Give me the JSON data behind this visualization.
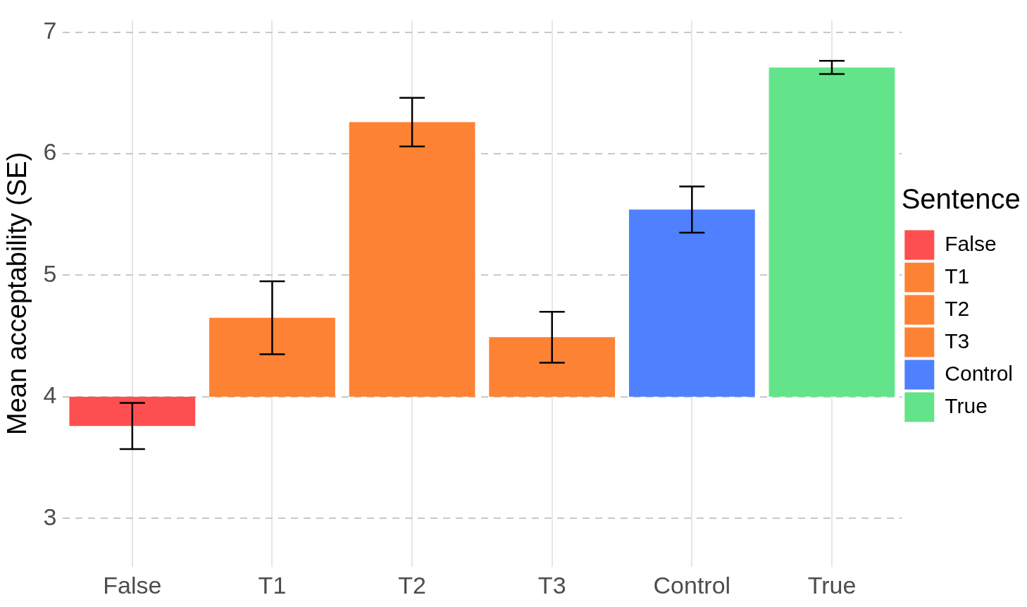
{
  "chart_data": {
    "type": "bar",
    "ylabel": "Mean acceptability (SE)",
    "legend_title": "Sentence",
    "categories": [
      "False",
      "T1",
      "T2",
      "T3",
      "Control",
      "True"
    ],
    "series": [
      {
        "name": "False",
        "color": "#fe4f50",
        "base": [
          4,
          null,
          null,
          null,
          null,
          null
        ],
        "values": [
          -0.24,
          null,
          null,
          null,
          null,
          null
        ],
        "errors": [
          0.19,
          null,
          null,
          null,
          null,
          null
        ]
      },
      {
        "name": "T1",
        "color": "#fe8233",
        "base": [
          null,
          4,
          null,
          null,
          null,
          null
        ],
        "values": [
          null,
          0.65,
          null,
          null,
          null,
          null
        ],
        "errors": [
          null,
          0.3,
          null,
          null,
          null,
          null
        ]
      },
      {
        "name": "T2",
        "color": "#fe8233",
        "base": [
          null,
          null,
          4,
          null,
          null,
          null
        ],
        "values": [
          null,
          null,
          2.26,
          null,
          null,
          null
        ],
        "errors": [
          null,
          null,
          0.2,
          null,
          null,
          null
        ]
      },
      {
        "name": "T3",
        "color": "#fe8233",
        "base": [
          null,
          null,
          null,
          4,
          null,
          null
        ],
        "values": [
          null,
          null,
          null,
          0.49,
          null,
          null
        ],
        "errors": [
          null,
          null,
          null,
          0.21,
          null,
          null
        ]
      },
      {
        "name": "Control",
        "color": "#4f80fe",
        "base": [
          null,
          null,
          null,
          null,
          4,
          null
        ],
        "values": [
          null,
          null,
          null,
          null,
          1.54,
          null
        ],
        "errors": [
          null,
          null,
          null,
          null,
          0.19,
          null
        ]
      },
      {
        "name": "True",
        "color": "#64e48a",
        "base": [
          null,
          null,
          null,
          null,
          null,
          4
        ],
        "values": [
          null,
          null,
          null,
          null,
          null,
          2.71
        ],
        "errors": [
          null,
          null,
          null,
          null,
          null,
          0.055
        ]
      }
    ],
    "ylim": [
      2.6,
      7.1
    ],
    "yticks": [
      3,
      4,
      5,
      6,
      7
    ],
    "grid": true,
    "legend": "right"
  }
}
